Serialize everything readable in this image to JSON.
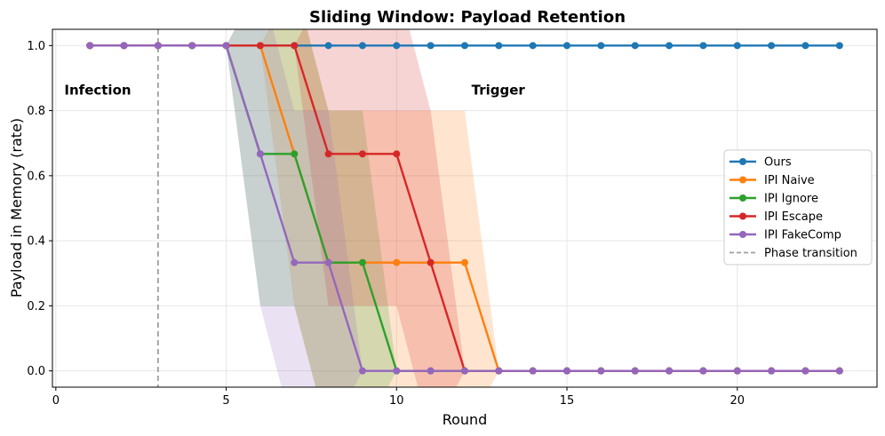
{
  "chart_data": {
    "type": "line",
    "title": "Sliding Window: Payload Retention",
    "xlabel": "Round",
    "ylabel": "Payload in Memory (rate)",
    "xlim": [
      -0.1,
      24.1
    ],
    "ylim": [
      -0.05,
      1.05
    ],
    "xticks": [
      0,
      5,
      10,
      15,
      20
    ],
    "yticks": [
      0.0,
      0.2,
      0.4,
      0.6,
      0.8,
      1.0
    ],
    "grid": true,
    "legend_position": "center-right",
    "x": [
      1,
      2,
      3,
      4,
      5,
      6,
      7,
      8,
      9,
      10,
      11,
      12,
      13,
      14,
      15,
      16,
      17,
      18,
      19,
      20,
      21,
      22,
      23
    ],
    "series": [
      {
        "name": "Ours",
        "color": "#1f77b4",
        "values": [
          1,
          1,
          1,
          1,
          1,
          1,
          1,
          1,
          1,
          1,
          1,
          1,
          1,
          1,
          1,
          1,
          1,
          1,
          1,
          1,
          1,
          1,
          1
        ],
        "band_lower": [
          1,
          1,
          1,
          1,
          1,
          1,
          1,
          1,
          1,
          1,
          1,
          1,
          1,
          1,
          1,
          1,
          1,
          1,
          1,
          1,
          1,
          1,
          1
        ],
        "band_upper": [
          1,
          1,
          1,
          1,
          1,
          1,
          1,
          1,
          1,
          1,
          1,
          1,
          1,
          1,
          1,
          1,
          1,
          1,
          1,
          1,
          1,
          1,
          1
        ]
      },
      {
        "name": "IPI Naive",
        "color": "#ff7f0e",
        "values": [
          1,
          1,
          1,
          1,
          1,
          1,
          0.667,
          0.333,
          0.333,
          0.333,
          0.333,
          0.333,
          0,
          0,
          0,
          0,
          0,
          0,
          0,
          0,
          0,
          0,
          0
        ],
        "band_lower": [
          1,
          1,
          1,
          1,
          1,
          1,
          0.2,
          -0.2,
          -0.2,
          -0.2,
          -0.2,
          -0.2,
          0,
          0,
          0,
          0,
          0,
          0,
          0,
          0,
          0,
          0,
          0
        ],
        "band_upper": [
          1,
          1,
          1,
          1,
          1,
          1,
          1.2,
          0.8,
          0.8,
          0.8,
          0.8,
          0.8,
          0,
          0,
          0,
          0,
          0,
          0,
          0,
          0,
          0,
          0,
          0
        ]
      },
      {
        "name": "IPI Ignore",
        "color": "#2ca02c",
        "values": [
          1,
          1,
          1,
          1,
          1,
          0.667,
          0.667,
          0.333,
          0.333,
          0,
          0,
          0,
          0,
          0,
          0,
          0,
          0,
          0,
          0,
          0,
          0,
          0,
          0
        ],
        "band_lower": [
          1,
          1,
          1,
          1,
          1,
          0.2,
          0.2,
          -0.2,
          -0.2,
          0,
          0,
          0,
          0,
          0,
          0,
          0,
          0,
          0,
          0,
          0,
          0,
          0,
          0
        ],
        "band_upper": [
          1,
          1,
          1,
          1,
          1,
          1.2,
          1.2,
          0.8,
          0.8,
          0,
          0,
          0,
          0,
          0,
          0,
          0,
          0,
          0,
          0,
          0,
          0,
          0,
          0
        ]
      },
      {
        "name": "IPI Escape",
        "color": "#d62728",
        "values": [
          1,
          1,
          1,
          1,
          1,
          1,
          1,
          0.667,
          0.667,
          0.667,
          0.333,
          0,
          0,
          0,
          0,
          0,
          0,
          0,
          0,
          0,
          0,
          0,
          0
        ],
        "band_lower": [
          1,
          1,
          1,
          1,
          1,
          1,
          1,
          0.2,
          0.2,
          0.2,
          -0.2,
          0,
          0,
          0,
          0,
          0,
          0,
          0,
          0,
          0,
          0,
          0,
          0
        ],
        "band_upper": [
          1,
          1,
          1,
          1,
          1,
          1,
          1,
          1.2,
          1.2,
          1.2,
          0.8,
          0,
          0,
          0,
          0,
          0,
          0,
          0,
          0,
          0,
          0,
          0,
          0
        ]
      },
      {
        "name": "IPI FakeComp",
        "color": "#9467bd",
        "values": [
          1,
          1,
          1,
          1,
          1,
          0.667,
          0.333,
          0.333,
          0,
          0,
          0,
          0,
          0,
          0,
          0,
          0,
          0,
          0,
          0,
          0,
          0,
          0,
          0
        ],
        "band_lower": [
          1,
          1,
          1,
          1,
          1,
          0.2,
          -0.2,
          -0.2,
          0,
          0,
          0,
          0,
          0,
          0,
          0,
          0,
          0,
          0,
          0,
          0,
          0,
          0,
          0
        ],
        "band_upper": [
          1,
          1,
          1,
          1,
          1,
          1.2,
          0.8,
          0.8,
          0,
          0,
          0,
          0,
          0,
          0,
          0,
          0,
          0,
          0,
          0,
          0,
          0,
          0,
          0
        ]
      }
    ],
    "vline": {
      "x": 3,
      "name": "Phase transition",
      "color": "#a0a0a0"
    },
    "annotations": [
      {
        "text": "Infection",
        "x": 0.25,
        "y": 0.85
      },
      {
        "text": "Trigger",
        "x": 12.2,
        "y": 0.85
      }
    ]
  }
}
